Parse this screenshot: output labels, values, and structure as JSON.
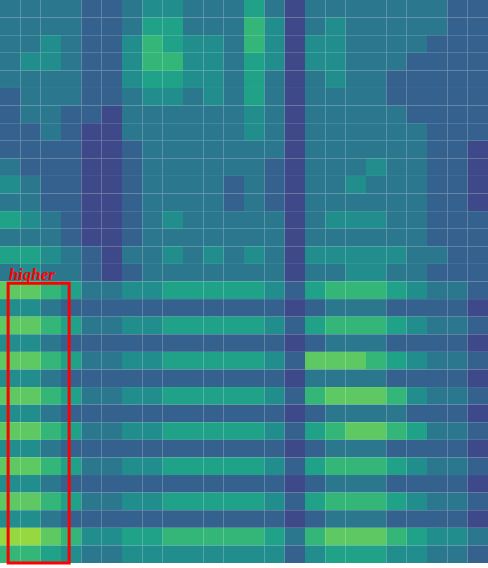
{
  "chart_data": {
    "type": "heatmap",
    "color": "viridis",
    "tick_labels": false,
    "xlim": [
      0,
      24
    ],
    "ylim": [
      0,
      32
    ],
    "annotations": [
      {
        "text": "higher",
        "color": "red",
        "x": [
          0.4,
          3.4
        ],
        "y": [
          0,
          15.9
        ]
      }
    ],
    "z": [
      [
        4,
        4,
        4,
        4,
        3,
        3,
        4,
        5,
        5,
        4,
        4,
        4,
        6,
        4,
        2,
        4,
        4,
        4,
        4,
        4,
        4,
        4,
        3,
        3
      ],
      [
        4,
        4,
        4,
        4,
        3,
        3,
        4,
        6,
        6,
        4,
        4,
        4,
        7,
        5,
        2,
        4,
        5,
        4,
        4,
        4,
        4,
        4,
        3,
        3
      ],
      [
        4,
        4,
        5,
        4,
        3,
        3,
        5,
        7,
        6,
        5,
        5,
        4,
        7,
        5,
        2,
        5,
        5,
        4,
        4,
        4,
        4,
        3,
        3,
        3
      ],
      [
        4,
        5,
        5,
        4,
        3,
        3,
        5,
        7,
        7,
        5,
        5,
        4,
        6,
        5,
        2,
        5,
        5,
        4,
        4,
        4,
        3,
        3,
        3,
        3
      ],
      [
        4,
        4,
        4,
        4,
        3,
        3,
        5,
        6,
        6,
        5,
        5,
        4,
        6,
        4,
        2,
        4,
        5,
        4,
        4,
        3,
        3,
        3,
        3,
        3
      ],
      [
        3,
        4,
        4,
        4,
        3,
        3,
        4,
        5,
        5,
        4,
        5,
        4,
        6,
        4,
        2,
        4,
        4,
        4,
        4,
        3,
        3,
        3,
        3,
        3
      ],
      [
        3,
        4,
        4,
        3,
        3,
        2,
        4,
        4,
        4,
        4,
        4,
        4,
        5,
        4,
        2,
        4,
        4,
        4,
        4,
        4,
        3,
        3,
        3,
        3
      ],
      [
        3,
        3,
        4,
        3,
        2,
        2,
        4,
        4,
        4,
        4,
        4,
        4,
        5,
        4,
        2,
        4,
        4,
        4,
        4,
        4,
        4,
        3,
        3,
        3
      ],
      [
        3,
        3,
        3,
        3,
        2,
        2,
        3,
        4,
        4,
        4,
        4,
        4,
        4,
        4,
        2,
        4,
        4,
        4,
        4,
        4,
        4,
        3,
        3,
        2
      ],
      [
        4,
        3,
        3,
        3,
        2,
        2,
        3,
        4,
        4,
        4,
        4,
        4,
        4,
        3,
        2,
        4,
        4,
        4,
        5,
        4,
        4,
        3,
        3,
        2
      ],
      [
        5,
        4,
        3,
        3,
        2,
        2,
        3,
        4,
        4,
        4,
        4,
        3,
        4,
        3,
        2,
        4,
        4,
        5,
        4,
        4,
        4,
        3,
        3,
        2
      ],
      [
        4,
        4,
        3,
        3,
        2,
        2,
        3,
        4,
        4,
        4,
        4,
        3,
        4,
        3,
        2,
        4,
        4,
        4,
        4,
        4,
        4,
        3,
        3,
        2
      ],
      [
        6,
        5,
        4,
        3,
        2,
        2,
        3,
        4,
        5,
        4,
        4,
        4,
        4,
        4,
        2,
        4,
        5,
        5,
        5,
        4,
        4,
        3,
        3,
        3
      ],
      [
        4,
        4,
        4,
        3,
        2,
        2,
        3,
        4,
        4,
        4,
        4,
        4,
        4,
        4,
        2,
        4,
        4,
        4,
        4,
        4,
        4,
        3,
        3,
        3
      ],
      [
        6,
        6,
        5,
        4,
        3,
        2,
        4,
        4,
        5,
        4,
        5,
        4,
        5,
        4,
        2,
        5,
        5,
        5,
        5,
        5,
        4,
        4,
        3,
        3
      ],
      [
        4,
        5,
        4,
        4,
        3,
        2,
        3,
        4,
        4,
        4,
        4,
        4,
        4,
        4,
        2,
        4,
        4,
        5,
        5,
        4,
        4,
        3,
        3,
        3
      ],
      [
        8,
        8,
        7,
        6,
        4,
        4,
        5,
        5,
        6,
        6,
        6,
        6,
        6,
        5,
        3,
        6,
        7,
        7,
        7,
        6,
        5,
        4,
        4,
        3
      ],
      [
        5,
        5,
        4,
        3,
        3,
        3,
        3,
        3,
        3,
        3,
        3,
        3,
        3,
        3,
        2,
        3,
        4,
        4,
        4,
        3,
        3,
        3,
        3,
        2
      ],
      [
        8,
        8,
        7,
        6,
        4,
        4,
        5,
        5,
        6,
        6,
        6,
        6,
        6,
        5,
        3,
        6,
        7,
        7,
        7,
        6,
        5,
        4,
        4,
        3
      ],
      [
        5,
        5,
        4,
        3,
        3,
        3,
        3,
        3,
        3,
        3,
        3,
        3,
        3,
        3,
        2,
        3,
        4,
        4,
        4,
        3,
        3,
        3,
        3,
        2
      ],
      [
        8,
        8,
        7,
        6,
        4,
        4,
        5,
        5,
        6,
        6,
        6,
        6,
        6,
        5,
        3,
        8,
        8,
        8,
        7,
        6,
        5,
        4,
        4,
        3
      ],
      [
        5,
        5,
        4,
        3,
        3,
        3,
        3,
        3,
        3,
        3,
        3,
        3,
        3,
        3,
        2,
        4,
        4,
        4,
        4,
        3,
        3,
        3,
        3,
        2
      ],
      [
        8,
        8,
        7,
        6,
        4,
        4,
        5,
        5,
        6,
        6,
        6,
        6,
        6,
        5,
        3,
        7,
        8,
        8,
        8,
        7,
        5,
        4,
        4,
        3
      ],
      [
        5,
        5,
        4,
        3,
        3,
        3,
        3,
        3,
        3,
        3,
        3,
        3,
        3,
        3,
        2,
        3,
        4,
        4,
        4,
        4,
        3,
        3,
        3,
        2
      ],
      [
        8,
        8,
        7,
        6,
        4,
        4,
        5,
        5,
        6,
        6,
        6,
        6,
        6,
        5,
        3,
        6,
        7,
        8,
        8,
        7,
        6,
        4,
        4,
        3
      ],
      [
        5,
        5,
        4,
        3,
        3,
        3,
        3,
        3,
        3,
        3,
        3,
        3,
        3,
        3,
        2,
        3,
        4,
        4,
        4,
        3,
        3,
        3,
        3,
        2
      ],
      [
        8,
        8,
        7,
        6,
        4,
        4,
        5,
        5,
        6,
        6,
        6,
        6,
        6,
        5,
        3,
        6,
        7,
        7,
        7,
        6,
        5,
        4,
        4,
        3
      ],
      [
        5,
        5,
        4,
        3,
        3,
        3,
        3,
        3,
        3,
        3,
        3,
        3,
        3,
        3,
        2,
        3,
        4,
        4,
        4,
        3,
        3,
        3,
        3,
        2
      ],
      [
        8,
        8,
        7,
        6,
        4,
        4,
        5,
        5,
        6,
        6,
        6,
        6,
        6,
        5,
        3,
        6,
        7,
        7,
        7,
        6,
        5,
        4,
        4,
        3
      ],
      [
        5,
        5,
        4,
        3,
        3,
        3,
        3,
        3,
        3,
        3,
        3,
        3,
        3,
        3,
        2,
        3,
        4,
        4,
        4,
        3,
        3,
        3,
        3,
        2
      ],
      [
        9,
        9,
        8,
        7,
        5,
        5,
        6,
        6,
        7,
        7,
        7,
        7,
        7,
        6,
        4,
        7,
        8,
        8,
        8,
        7,
        6,
        5,
        5,
        4
      ],
      [
        7,
        7,
        6,
        5,
        4,
        4,
        5,
        5,
        5,
        5,
        5,
        5,
        5,
        5,
        3,
        5,
        6,
        6,
        6,
        5,
        5,
        4,
        4,
        3
      ]
    ]
  }
}
